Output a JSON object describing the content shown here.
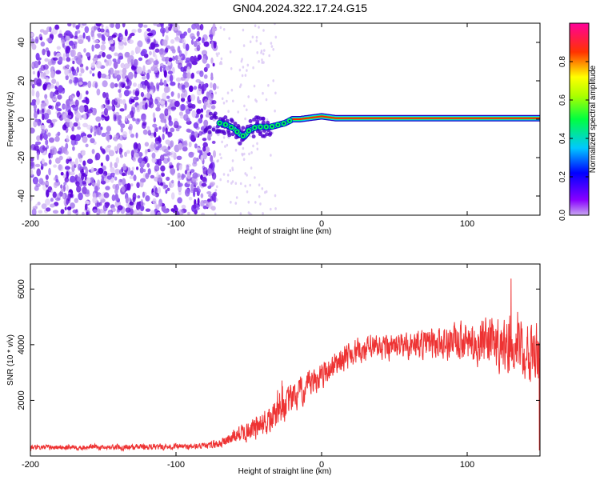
{
  "title": "GN04.2024.322.17.24.G15",
  "chart_data": [
    {
      "type": "heatmap",
      "xlabel": "Height of straight line (km)",
      "ylabel": "Frequency (Hz)",
      "xlim": [
        -200,
        150
      ],
      "ylim": [
        -50,
        50
      ],
      "xticks": [
        "-200",
        "-100",
        "0",
        "100"
      ],
      "xtick_values": [
        -200,
        -100,
        0,
        100
      ],
      "yticks": [
        "-40",
        "-20",
        "0",
        "20",
        "40"
      ],
      "ytick_values": [
        -40,
        -20,
        0,
        20,
        40
      ],
      "colorbar": {
        "label": "Normalized spectral amplitude",
        "range": [
          0,
          1
        ],
        "ticks": [
          "0.0",
          "0.2",
          "0.4",
          "0.6",
          "0.8"
        ],
        "tick_values": [
          0.0,
          0.2,
          0.4,
          0.6,
          0.8
        ],
        "colormap": "rainbow (purple-blue-cyan-green-yellow-red-magenta)"
      },
      "noise_region_x": [
        -200,
        -73
      ],
      "dominant_frequency_trace": [
        {
          "x": -70,
          "y": -2
        },
        {
          "x": -65,
          "y": -3
        },
        {
          "x": -60,
          "y": -5
        },
        {
          "x": -56,
          "y": -8
        },
        {
          "x": -53,
          "y": -9
        },
        {
          "x": -50,
          "y": -6
        },
        {
          "x": -45,
          "y": -4
        },
        {
          "x": -40,
          "y": -4
        },
        {
          "x": -35,
          "y": -4
        },
        {
          "x": -30,
          "y": -3
        },
        {
          "x": -25,
          "y": -2
        },
        {
          "x": -20,
          "y": 0
        },
        {
          "x": -15,
          "y": 0
        },
        {
          "x": -10,
          "y": 0.5
        },
        {
          "x": -5,
          "y": 1
        },
        {
          "x": 0,
          "y": 1.5
        },
        {
          "x": 5,
          "y": 1
        },
        {
          "x": 10,
          "y": 0.5
        },
        {
          "x": 50,
          "y": 0.5
        },
        {
          "x": 100,
          "y": 0.5
        },
        {
          "x": 150,
          "y": 0.5
        }
      ]
    },
    {
      "type": "line",
      "xlabel": "Height of straight line (km)",
      "ylabel": "SNR (10 * v/v)",
      "xlim": [
        -200,
        150
      ],
      "ylim": [
        0,
        6900
      ],
      "xticks": [
        "-200",
        "-100",
        "0",
        "100"
      ],
      "xtick_values": [
        -200,
        -100,
        0,
        100
      ],
      "yticks": [
        "2000",
        "4000",
        "6000"
      ],
      "ytick_values": [
        2000,
        4000,
        6000
      ],
      "series": [
        {
          "color": "#ee3333",
          "trend": [
            {
              "x": -200,
              "y": 300
            },
            {
              "x": -150,
              "y": 320
            },
            {
              "x": -100,
              "y": 330
            },
            {
              "x": -80,
              "y": 340
            },
            {
              "x": -70,
              "y": 450
            },
            {
              "x": -60,
              "y": 700
            },
            {
              "x": -50,
              "y": 950
            },
            {
              "x": -40,
              "y": 1100
            },
            {
              "x": -30,
              "y": 1550
            },
            {
              "x": -20,
              "y": 2050
            },
            {
              "x": -10,
              "y": 2450
            },
            {
              "x": 0,
              "y": 2900
            },
            {
              "x": 10,
              "y": 3350
            },
            {
              "x": 20,
              "y": 3700
            },
            {
              "x": 30,
              "y": 3850
            },
            {
              "x": 50,
              "y": 3950
            },
            {
              "x": 75,
              "y": 4050
            },
            {
              "x": 100,
              "y": 4100
            },
            {
              "x": 125,
              "y": 4050
            },
            {
              "x": 150,
              "y": 4000
            }
          ],
          "noise_amplitude": [
            {
              "x": -200,
              "y": 120
            },
            {
              "x": -80,
              "y": 150
            },
            {
              "x": -60,
              "y": 350
            },
            {
              "x": -40,
              "y": 700
            },
            {
              "x": -20,
              "y": 700
            },
            {
              "x": 0,
              "y": 600
            },
            {
              "x": 50,
              "y": 600
            },
            {
              "x": 100,
              "y": 900
            },
            {
              "x": 150,
              "y": 1600
            }
          ]
        }
      ]
    }
  ]
}
